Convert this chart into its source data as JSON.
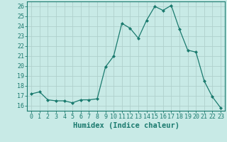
{
  "x": [
    0,
    1,
    2,
    3,
    4,
    5,
    6,
    7,
    8,
    9,
    10,
    11,
    12,
    13,
    14,
    15,
    16,
    17,
    18,
    19,
    20,
    21,
    22,
    23
  ],
  "y": [
    17.2,
    17.4,
    16.6,
    16.5,
    16.5,
    16.3,
    16.6,
    16.6,
    16.7,
    19.9,
    21.0,
    24.3,
    23.8,
    22.8,
    24.6,
    26.0,
    25.6,
    26.1,
    23.7,
    21.6,
    21.4,
    18.5,
    16.9,
    15.8
  ],
  "line_color": "#1a7a6e",
  "marker": "D",
  "marker_size": 2.0,
  "bg_color": "#c8eae6",
  "grid_color": "#b0d0cc",
  "xlabel": "Humidex (Indice chaleur)",
  "xlim": [
    -0.5,
    23.5
  ],
  "ylim": [
    15.5,
    26.5
  ],
  "yticks": [
    16,
    17,
    18,
    19,
    20,
    21,
    22,
    23,
    24,
    25,
    26
  ],
  "xticks": [
    0,
    1,
    2,
    3,
    4,
    5,
    6,
    7,
    8,
    9,
    10,
    11,
    12,
    13,
    14,
    15,
    16,
    17,
    18,
    19,
    20,
    21,
    22,
    23
  ],
  "tick_color": "#1a7a6e",
  "label_color": "#1a7a6e",
  "axis_color": "#1a7a6e",
  "font_size": 6.0,
  "xlabel_fontsize": 7.5,
  "linewidth": 0.9
}
